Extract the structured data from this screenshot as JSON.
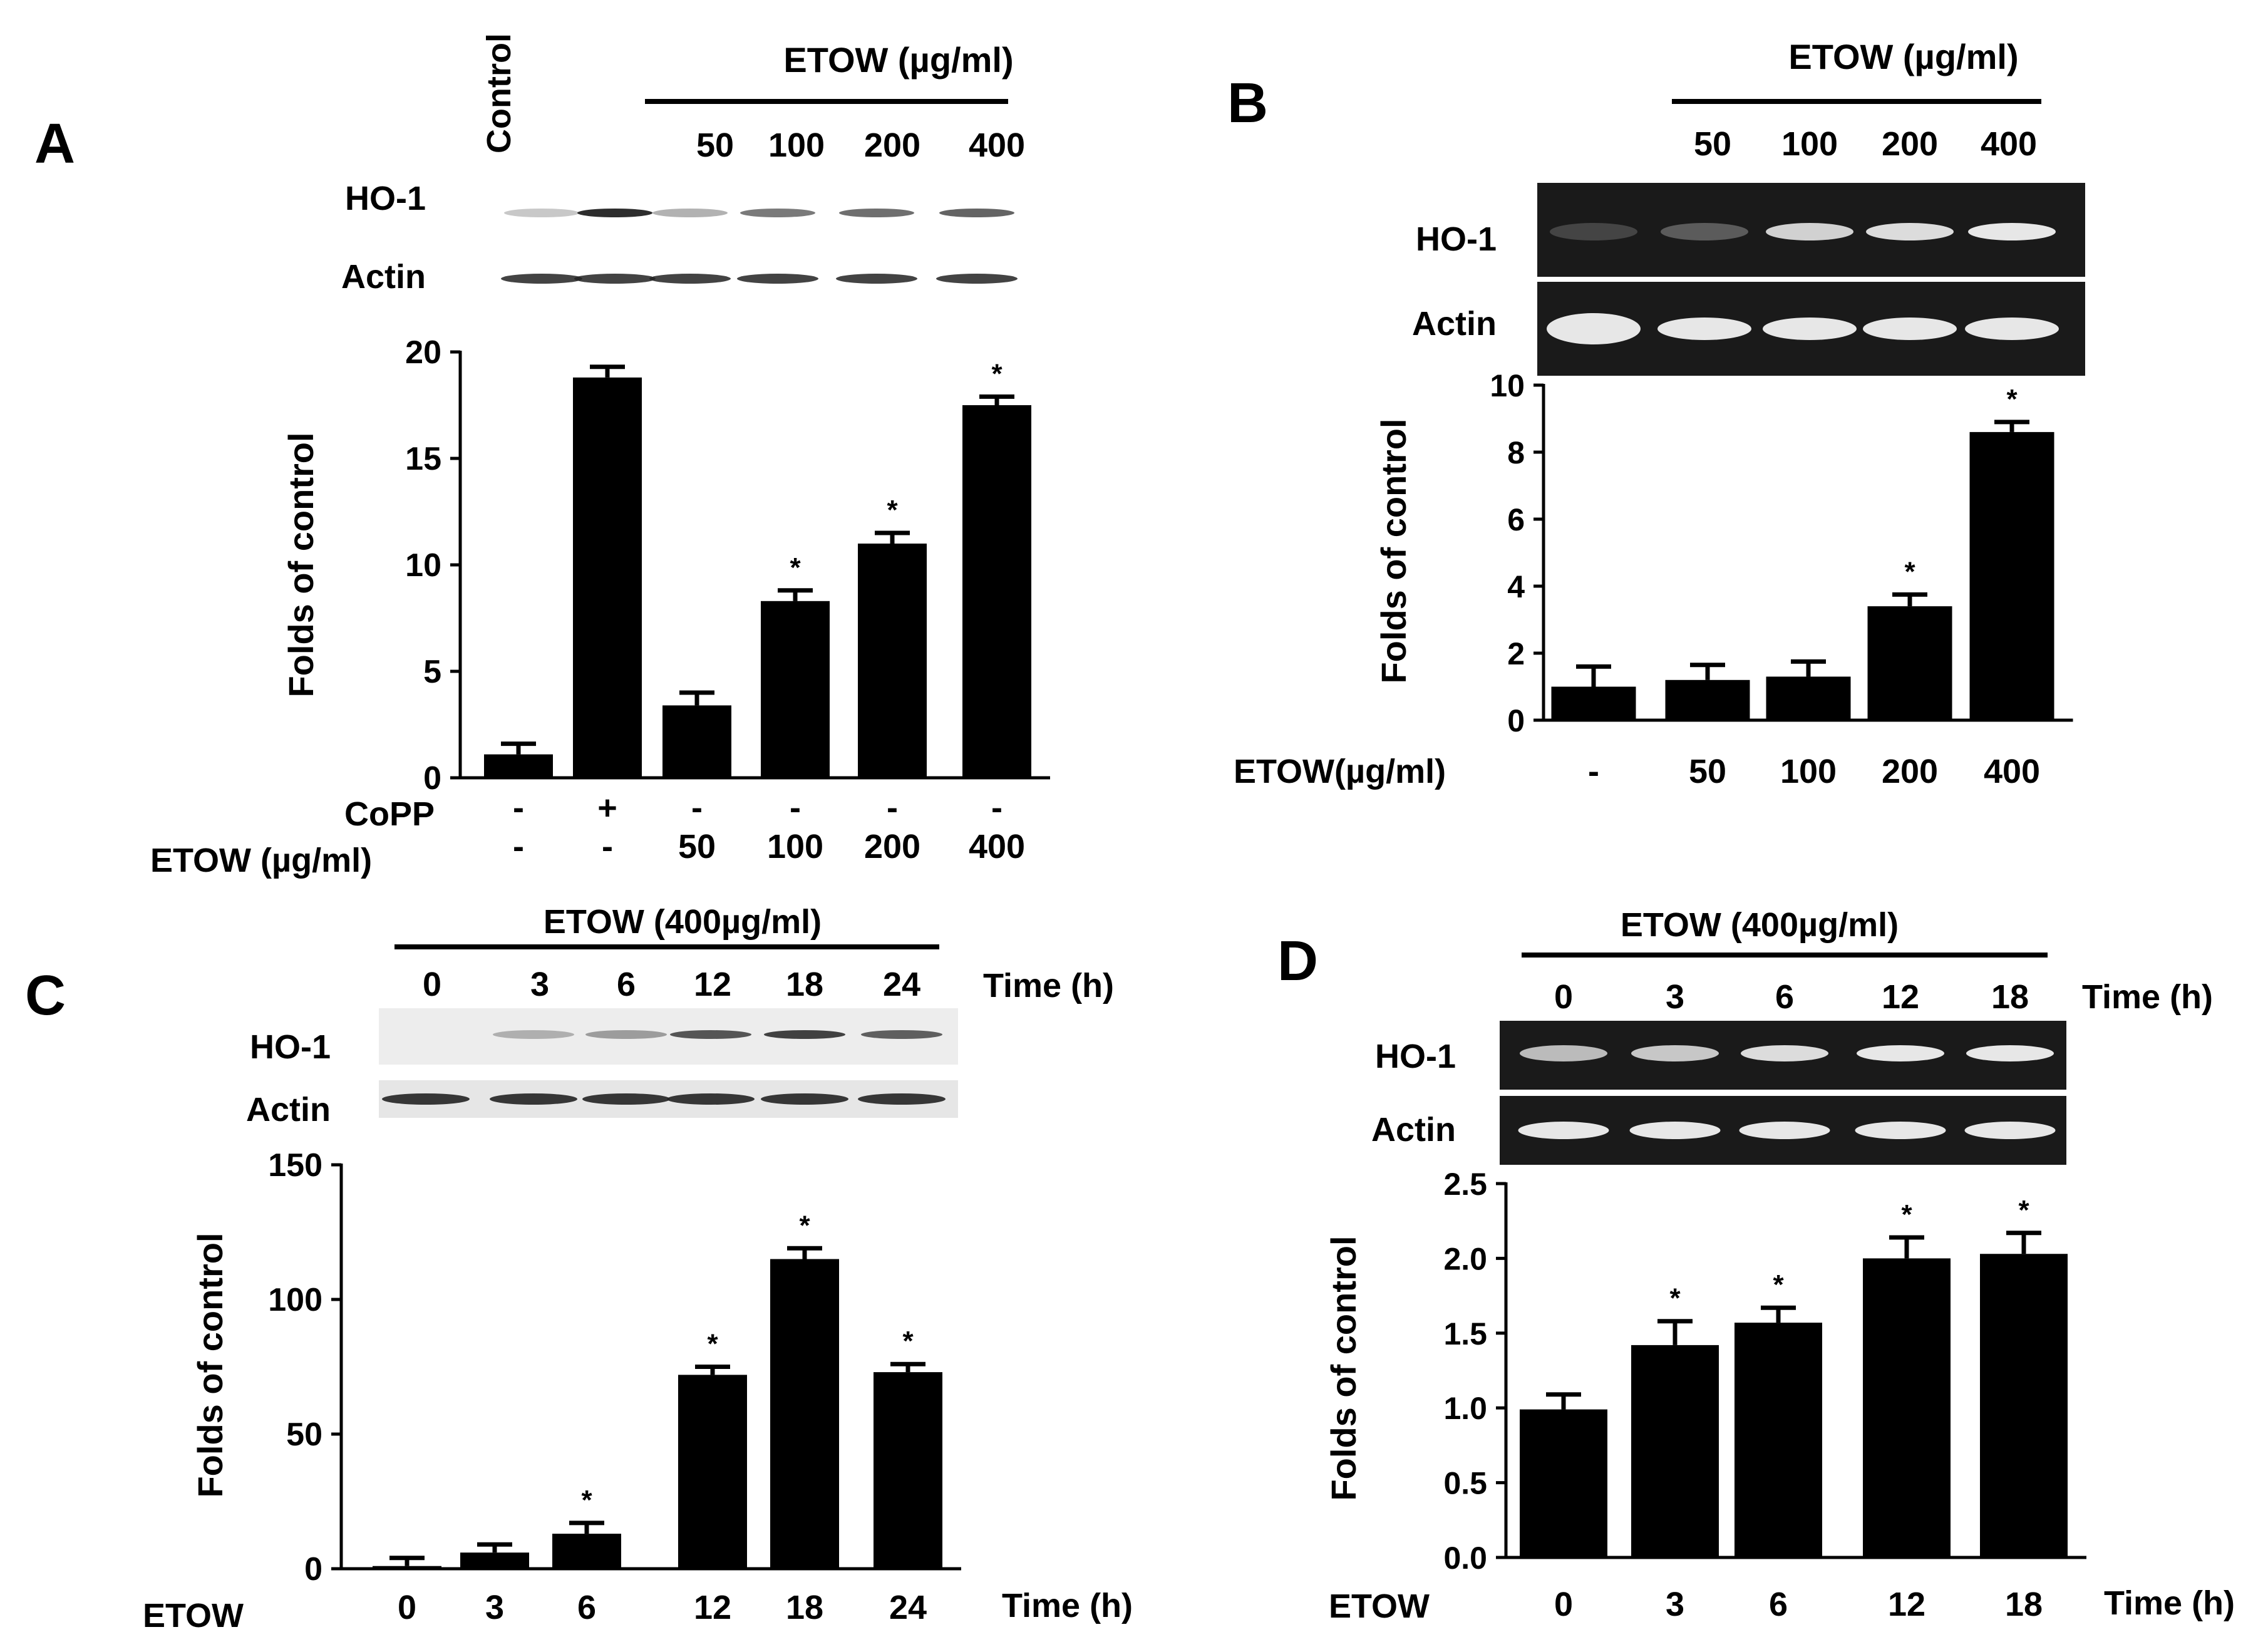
{
  "colors": {
    "bar": "#000000",
    "background": "#ffffff",
    "blot_dark": "#1a1a1a",
    "band_white": "#f2f2f2"
  },
  "panels": {
    "A": {
      "label": "A",
      "blot": {
        "control_label": "Control",
        "treatment_label": "ETOW (µg/ml)",
        "doses": [
          "50",
          "100",
          "200",
          "400"
        ],
        "row_labels": [
          "HO-1",
          "Actin"
        ]
      },
      "condition_rows": [
        {
          "label": "CoPP",
          "values": [
            "-",
            "+",
            "-",
            "-",
            "-",
            "-"
          ]
        },
        {
          "label": "ETOW (µg/ml)",
          "values": [
            "-",
            "-",
            "50",
            "100",
            "200",
            "400"
          ]
        }
      ]
    },
    "B": {
      "label": "B",
      "blot": {
        "treatment_label": "ETOW (µg/ml)",
        "doses": [
          "50",
          "100",
          "200",
          "400"
        ],
        "row_labels": [
          "HO-1",
          "Actin"
        ]
      },
      "x_row_label": "ETOW(µg/ml)"
    },
    "C": {
      "label": "C",
      "blot": {
        "treatment_label": "ETOW (400µg/ml)",
        "times": [
          "0",
          "3",
          "6",
          "12",
          "18",
          "24"
        ],
        "time_label": "Time (h)",
        "row_labels": [
          "HO-1",
          "Actin"
        ]
      },
      "x_row_label": "ETOW",
      "x_unit_label": "Time (h)"
    },
    "D": {
      "label": "D",
      "blot": {
        "treatment_label": "ETOW (400µg/ml)",
        "times": [
          "0",
          "3",
          "6",
          "12",
          "18"
        ],
        "time_label": "Time (h)",
        "row_labels": [
          "HO-1",
          "Actin"
        ]
      },
      "x_row_label": "ETOW",
      "x_unit_label": "Time (h)"
    }
  },
  "chart_data": [
    {
      "panel": "A",
      "type": "bar",
      "ylabel": "Folds of control",
      "ylim": [
        0,
        20
      ],
      "yticks": [
        "0",
        "5",
        "10",
        "15",
        "20"
      ],
      "categories": [
        "Control",
        "CoPP",
        "50",
        "100",
        "200",
        "400"
      ],
      "values": [
        1.1,
        18.8,
        3.4,
        8.3,
        11.0,
        17.5
      ],
      "errors": [
        0.5,
        0.5,
        0.6,
        0.5,
        0.5,
        0.4
      ],
      "significance": [
        "",
        "",
        "",
        "*",
        "*",
        "*"
      ]
    },
    {
      "panel": "B",
      "type": "bar",
      "ylabel": "Folds of control",
      "ylim": [
        0,
        10
      ],
      "yticks": [
        "0",
        "2",
        "4",
        "6",
        "8",
        "10"
      ],
      "categories": [
        "-",
        "50",
        "100",
        "200",
        "400"
      ],
      "values": [
        1.0,
        1.2,
        1.3,
        3.4,
        8.6
      ],
      "errors": [
        0.6,
        0.45,
        0.45,
        0.35,
        0.3
      ],
      "significance": [
        "",
        "",
        "",
        "*",
        "*"
      ]
    },
    {
      "panel": "C",
      "type": "bar",
      "ylabel": "Folds of control",
      "ylim": [
        0,
        150
      ],
      "yticks": [
        "0",
        "50",
        "100",
        "150"
      ],
      "categories": [
        "0",
        "3",
        "6",
        "12",
        "18",
        "24"
      ],
      "values": [
        1,
        6,
        13,
        72,
        115,
        73
      ],
      "errors": [
        3,
        3,
        4,
        3,
        4,
        3
      ],
      "significance": [
        "",
        "",
        "*",
        "*",
        "*",
        "*"
      ]
    },
    {
      "panel": "D",
      "type": "bar",
      "ylabel": "Folds of control",
      "ylim": [
        0,
        2.5
      ],
      "yticks": [
        "0.0",
        "0.5",
        "1.0",
        "1.5",
        "2.0",
        "2.5"
      ],
      "categories": [
        "0",
        "3",
        "6",
        "12",
        "18"
      ],
      "values": [
        0.99,
        1.42,
        1.57,
        2.0,
        2.03
      ],
      "errors": [
        0.1,
        0.16,
        0.1,
        0.14,
        0.14
      ],
      "significance": [
        "",
        "*",
        "*",
        "*",
        "*"
      ]
    }
  ]
}
